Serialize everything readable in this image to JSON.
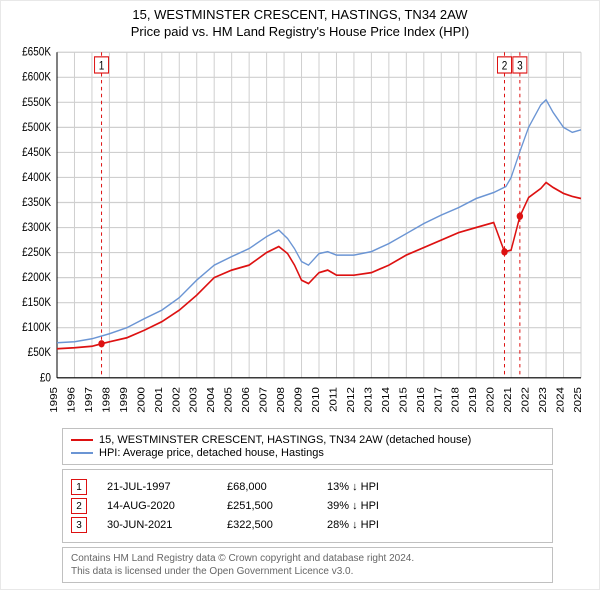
{
  "chart": {
    "title_line1": "15, WESTMINSTER CRESCENT, HASTINGS, TN34 2AW",
    "title_line2": "Price paid vs. HM Land Registry's House Price Index (HPI)",
    "title_fontsize": 13,
    "background_color": "#ffffff",
    "border_color": "#e8e8e8",
    "plot_border_color": "#c0c0c0",
    "grid_color": "#cfcfcf",
    "axis_color": "#000000",
    "x": {
      "min": 1995,
      "max": 2025,
      "ticks": [
        1995,
        1996,
        1997,
        1998,
        1999,
        2000,
        2001,
        2002,
        2003,
        2004,
        2005,
        2006,
        2007,
        2008,
        2009,
        2010,
        2011,
        2012,
        2013,
        2014,
        2015,
        2016,
        2017,
        2018,
        2019,
        2020,
        2021,
        2022,
        2023,
        2024,
        2025
      ]
    },
    "y": {
      "min": 0,
      "max": 650000,
      "tick_step": 50000,
      "labels": [
        "£0",
        "£50K",
        "£100K",
        "£150K",
        "£200K",
        "£250K",
        "£300K",
        "£350K",
        "£400K",
        "£450K",
        "£500K",
        "£550K",
        "£600K",
        "£650K"
      ]
    },
    "series": [
      {
        "key": "price_paid",
        "label": "15, WESTMINSTER CRESCENT, HASTINGS, TN34 2AW (detached house)",
        "color": "#dd1111",
        "width": 1.5,
        "points": [
          [
            1995.0,
            58000
          ],
          [
            1996.0,
            60000
          ],
          [
            1997.0,
            63000
          ],
          [
            1997.55,
            68000
          ],
          [
            1998.0,
            72000
          ],
          [
            1999.0,
            80000
          ],
          [
            2000.0,
            95000
          ],
          [
            2001.0,
            112000
          ],
          [
            2002.0,
            135000
          ],
          [
            2003.0,
            165000
          ],
          [
            2004.0,
            200000
          ],
          [
            2005.0,
            215000
          ],
          [
            2006.0,
            225000
          ],
          [
            2007.0,
            250000
          ],
          [
            2007.7,
            262000
          ],
          [
            2008.2,
            248000
          ],
          [
            2008.6,
            225000
          ],
          [
            2009.0,
            195000
          ],
          [
            2009.4,
            188000
          ],
          [
            2010.0,
            210000
          ],
          [
            2010.5,
            215000
          ],
          [
            2011.0,
            205000
          ],
          [
            2012.0,
            205000
          ],
          [
            2013.0,
            210000
          ],
          [
            2014.0,
            225000
          ],
          [
            2015.0,
            245000
          ],
          [
            2016.0,
            260000
          ],
          [
            2017.0,
            275000
          ],
          [
            2018.0,
            290000
          ],
          [
            2019.0,
            300000
          ],
          [
            2020.0,
            310000
          ],
          [
            2020.62,
            251500
          ],
          [
            2021.0,
            255000
          ],
          [
            2021.5,
            322500
          ],
          [
            2022.0,
            360000
          ],
          [
            2022.7,
            378000
          ],
          [
            2023.0,
            390000
          ],
          [
            2023.4,
            380000
          ],
          [
            2024.0,
            368000
          ],
          [
            2024.5,
            362000
          ],
          [
            2025.0,
            358000
          ]
        ]
      },
      {
        "key": "hpi",
        "label": "HPI: Average price, detached house, Hastings",
        "color": "#6b95d4",
        "width": 1.3,
        "points": [
          [
            1995.0,
            70000
          ],
          [
            1996.0,
            72000
          ],
          [
            1997.0,
            78000
          ],
          [
            1998.0,
            88000
          ],
          [
            1999.0,
            100000
          ],
          [
            2000.0,
            118000
          ],
          [
            2001.0,
            135000
          ],
          [
            2002.0,
            160000
          ],
          [
            2003.0,
            195000
          ],
          [
            2004.0,
            225000
          ],
          [
            2005.0,
            242000
          ],
          [
            2006.0,
            258000
          ],
          [
            2007.0,
            282000
          ],
          [
            2007.7,
            295000
          ],
          [
            2008.2,
            278000
          ],
          [
            2008.6,
            258000
          ],
          [
            2009.0,
            232000
          ],
          [
            2009.4,
            225000
          ],
          [
            2010.0,
            248000
          ],
          [
            2010.5,
            252000
          ],
          [
            2011.0,
            245000
          ],
          [
            2012.0,
            245000
          ],
          [
            2013.0,
            252000
          ],
          [
            2014.0,
            268000
          ],
          [
            2015.0,
            288000
          ],
          [
            2016.0,
            308000
          ],
          [
            2017.0,
            325000
          ],
          [
            2018.0,
            340000
          ],
          [
            2019.0,
            358000
          ],
          [
            2020.0,
            370000
          ],
          [
            2020.7,
            382000
          ],
          [
            2021.0,
            400000
          ],
          [
            2021.5,
            452000
          ],
          [
            2022.0,
            500000
          ],
          [
            2022.7,
            545000
          ],
          [
            2023.0,
            555000
          ],
          [
            2023.4,
            530000
          ],
          [
            2024.0,
            500000
          ],
          [
            2024.5,
            490000
          ],
          [
            2025.0,
            495000
          ]
        ]
      }
    ],
    "sale_markers": [
      {
        "n": "1",
        "x": 1997.55,
        "y": 68000
      },
      {
        "n": "2",
        "x": 2020.62,
        "y": 251500
      },
      {
        "n": "3",
        "x": 2021.5,
        "y": 322500
      }
    ],
    "marker_line_color": "#dd1111",
    "marker_dash": "3,3",
    "marker_box_border": "#dd1111",
    "marker_dot_fill": "#dd1111"
  },
  "legend": {
    "border_color": "#c0c0c0"
  },
  "markers_table": {
    "rows": [
      {
        "n": "1",
        "date": "21-JUL-1997",
        "price": "£68,000",
        "diff": "13% ↓ HPI"
      },
      {
        "n": "2",
        "date": "14-AUG-2020",
        "price": "£251,500",
        "diff": "39% ↓ HPI"
      },
      {
        "n": "3",
        "date": "30-JUN-2021",
        "price": "£322,500",
        "diff": "28% ↓ HPI"
      }
    ]
  },
  "footer": {
    "line1": "Contains HM Land Registry data © Crown copyright and database right 2024.",
    "line2": "This data is licensed under the Open Government Licence v3.0.",
    "text_color": "#666666"
  }
}
